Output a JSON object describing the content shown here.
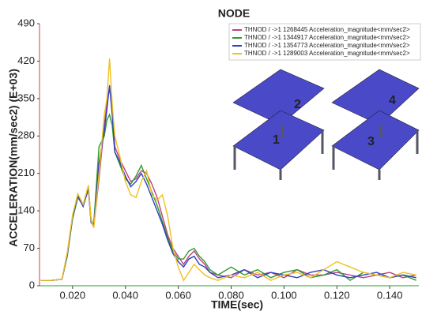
{
  "chart_data": {
    "type": "line",
    "title": "NODE",
    "x_label": "TIME(sec)",
    "y_label": "ACCELERATION(mm/sec2) (E+03)",
    "x": [
      0.008,
      0.012,
      0.016,
      0.018,
      0.02,
      0.022,
      0.024,
      0.026,
      0.027,
      0.028,
      0.03,
      0.032,
      0.033,
      0.034,
      0.035,
      0.036,
      0.038,
      0.04,
      0.042,
      0.044,
      0.046,
      0.048,
      0.05,
      0.052,
      0.054,
      0.056,
      0.058,
      0.06,
      0.062,
      0.064,
      0.066,
      0.068,
      0.07,
      0.072,
      0.075,
      0.08,
      0.085,
      0.09,
      0.095,
      0.1,
      0.105,
      0.11,
      0.115,
      0.12,
      0.125,
      0.13,
      0.135,
      0.14,
      0.145,
      0.15
    ],
    "series": [
      {
        "name": "THNOD / ->1 1268445 Acceleration_magnitude<mm/sec2>",
        "color": "#c0407f",
        "values": [
          10,
          10,
          12,
          60,
          130,
          170,
          150,
          185,
          125,
          110,
          200,
          300,
          340,
          370,
          330,
          260,
          235,
          215,
          195,
          200,
          215,
          210,
          190,
          165,
          130,
          95,
          70,
          55,
          40,
          55,
          65,
          50,
          40,
          25,
          20,
          15,
          30,
          20,
          25,
          15,
          30,
          20,
          20,
          25,
          20,
          15,
          20,
          25,
          15,
          20
        ]
      },
      {
        "name": "THNOD / ->1 1344917 Acceleration_magnitude<mm/sec2>",
        "color": "#2e9b2e",
        "values": [
          10,
          10,
          12,
          55,
          125,
          165,
          150,
          180,
          120,
          115,
          260,
          280,
          310,
          320,
          300,
          250,
          225,
          200,
          190,
          205,
          225,
          200,
          175,
          150,
          120,
          90,
          65,
          50,
          50,
          65,
          70,
          55,
          45,
          30,
          20,
          35,
          20,
          30,
          15,
          25,
          30,
          15,
          20,
          30,
          10,
          25,
          20,
          15,
          20,
          10
        ]
      },
      {
        "name": "THNOD / ->1 1354773 Acceleration_magnitude<mm/sec2>",
        "color": "#3040c0",
        "values": [
          10,
          10,
          12,
          58,
          128,
          168,
          148,
          182,
          118,
          112,
          230,
          290,
          330,
          375,
          320,
          250,
          230,
          205,
          185,
          195,
          210,
          190,
          165,
          140,
          115,
          85,
          60,
          45,
          35,
          50,
          55,
          40,
          35,
          25,
          15,
          20,
          30,
          15,
          25,
          20,
          15,
          25,
          30,
          20,
          15,
          20,
          25,
          15,
          20,
          15
        ]
      },
      {
        "name": "THNOD / ->1 1289003 Acceleration_magnitude<mm/sec2>",
        "color": "#f0c020",
        "values": [
          10,
          10,
          12,
          62,
          132,
          172,
          152,
          188,
          122,
          108,
          210,
          320,
          350,
          425,
          340,
          280,
          240,
          195,
          170,
          165,
          195,
          215,
          170,
          160,
          170,
          130,
          70,
          35,
          10,
          25,
          40,
          30,
          20,
          15,
          10,
          20,
          15,
          25,
          10,
          20,
          25,
          15,
          30,
          45,
          35,
          25,
          20,
          15,
          25,
          20
        ]
      }
    ],
    "xlim": [
      0.0075,
      0.151
    ],
    "xticks": [
      {
        "value": 0.02,
        "label": "0.020"
      },
      {
        "value": 0.04,
        "label": "0.040"
      },
      {
        "value": 0.06,
        "label": "0.060"
      },
      {
        "value": 0.08,
        "label": "0.080"
      },
      {
        "value": 0.1,
        "label": "0.100"
      },
      {
        "value": 0.12,
        "label": "0.120"
      },
      {
        "value": 0.14,
        "label": "0.140"
      }
    ],
    "ylim": [
      0,
      490
    ],
    "yticks": [
      0,
      70,
      140,
      210,
      280,
      350,
      420,
      490
    ],
    "inset_labels": [
      "1",
      "2",
      "3",
      "4"
    ]
  }
}
